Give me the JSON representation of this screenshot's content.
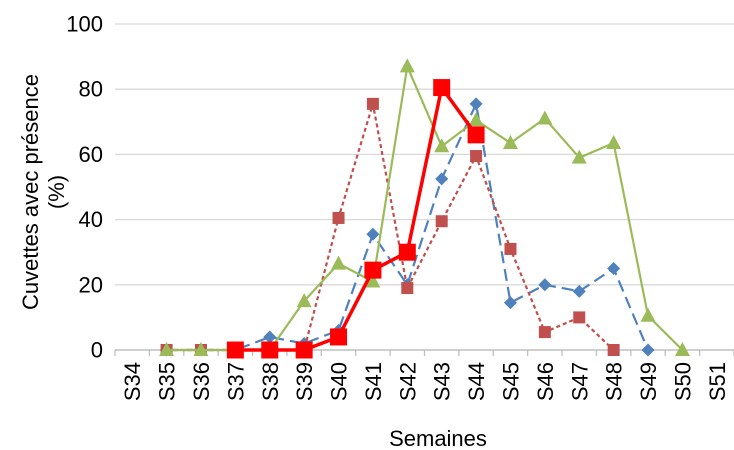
{
  "chart_data": {
    "type": "line",
    "title": "",
    "xlabel": "Semaines",
    "ylabel": "Cuvettes avec présence (%)",
    "ylim": [
      0,
      100
    ],
    "yticks": [
      0,
      20,
      40,
      60,
      80,
      100
    ],
    "grid": "horizontal",
    "legend": "none",
    "categories": [
      "S34",
      "S35",
      "S36",
      "S37",
      "S38",
      "S39",
      "S40",
      "S41",
      "S42",
      "S43",
      "S44",
      "S45",
      "S46",
      "S47",
      "S48",
      "S49",
      "S50",
      "S51"
    ],
    "series": [
      {
        "color": "#4F81BD",
        "line": "long-dash",
        "marker": "diamond",
        "values": [
          null,
          0,
          0,
          0,
          4,
          2,
          6,
          35.5,
          20,
          52.5,
          75.5,
          14.5,
          20,
          18,
          25,
          0,
          null,
          null
        ]
      },
      {
        "color": "#C0504D",
        "line": "short-dash",
        "marker": "square",
        "values": [
          null,
          0,
          0,
          0,
          0,
          0,
          40.5,
          75.5,
          19,
          39.5,
          59.5,
          31,
          5.5,
          10,
          0,
          null,
          null,
          null
        ]
      },
      {
        "color": "#9BBB59",
        "line": "solid",
        "marker": "triangle",
        "values": [
          null,
          0,
          0,
          0,
          0,
          15,
          26.5,
          21,
          87,
          62.5,
          70.5,
          63.5,
          71,
          59,
          63.5,
          10.5,
          0,
          null
        ]
      },
      {
        "color": "#FF0000",
        "line": "solid-thick",
        "marker": "square-large",
        "values": [
          null,
          null,
          null,
          0,
          0,
          0,
          4,
          24.5,
          30,
          80.5,
          66,
          null,
          null,
          null,
          null,
          null,
          null,
          null
        ]
      }
    ]
  }
}
